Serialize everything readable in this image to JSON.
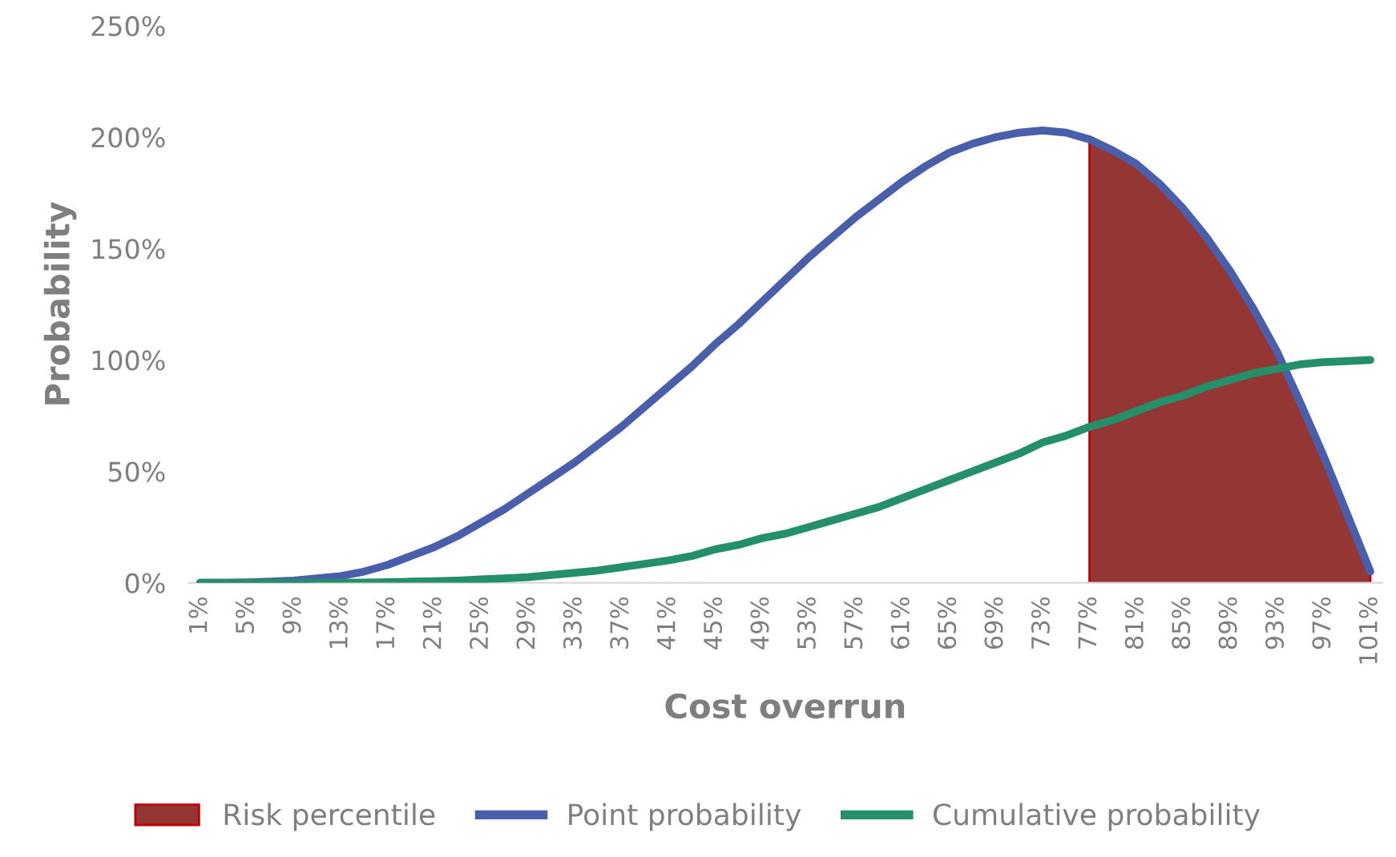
{
  "chart_data": {
    "type": "line",
    "xlabel": "Cost overrun",
    "ylabel": "Probability",
    "categories": [
      "1%",
      null,
      "5%",
      null,
      "9%",
      null,
      "13%",
      null,
      "17%",
      null,
      "21%",
      null,
      "25%",
      null,
      "29%",
      null,
      "33%",
      null,
      "37%",
      null,
      "41%",
      null,
      "45%",
      null,
      "49%",
      null,
      "53%",
      null,
      "57%",
      null,
      "61%",
      null,
      "65%",
      null,
      "69%",
      null,
      "73%",
      null,
      "77%",
      null,
      "81%",
      null,
      "85%",
      null,
      "89%",
      null,
      "93%",
      null,
      "97%",
      null,
      "101%"
    ],
    "series": [
      {
        "name": "Risk percentile",
        "type": "area",
        "color": "#943634",
        "values": [
          null,
          null,
          null,
          null,
          null,
          null,
          null,
          null,
          null,
          null,
          null,
          null,
          null,
          null,
          null,
          null,
          null,
          null,
          null,
          null,
          null,
          null,
          null,
          null,
          null,
          null,
          null,
          null,
          null,
          null,
          null,
          null,
          null,
          null,
          null,
          null,
          null,
          null,
          199,
          194,
          188,
          179,
          168,
          155,
          140,
          123,
          104,
          81,
          57,
          31,
          5
        ]
      },
      {
        "name": "Point probability",
        "color": "#4a5fab",
        "values": [
          0,
          0,
          0.2,
          0.5,
          1,
          2,
          3,
          5,
          8,
          12,
          16,
          21,
          27,
          33,
          40,
          47,
          54,
          62,
          70,
          79,
          88,
          97,
          107,
          116,
          126,
          136,
          146,
          155,
          164,
          172,
          180,
          187,
          193,
          197,
          200,
          202,
          203,
          202,
          199,
          194,
          188,
          179,
          168,
          155,
          140,
          123,
          104,
          81,
          57,
          31,
          5
        ]
      },
      {
        "name": "Cumulative probability",
        "color": "#23906a",
        "values": [
          0,
          0,
          0,
          0,
          0,
          0,
          0,
          0.1,
          0.3,
          0.5,
          0.7,
          1,
          1.5,
          2,
          2.5,
          3.5,
          4.5,
          5.5,
          7,
          8.5,
          10,
          12,
          15,
          17,
          20,
          22,
          25,
          28,
          31,
          34,
          38,
          42,
          46,
          50,
          54,
          58,
          63,
          66,
          70,
          73,
          77,
          81,
          84,
          88,
          91,
          94,
          96,
          98,
          99,
          99.5,
          100
        ]
      }
    ],
    "ylim": [
      0,
      250
    ],
    "yticks": [
      {
        "value": 0,
        "label": "0%"
      },
      {
        "value": 50,
        "label": "50%"
      },
      {
        "value": 100,
        "label": "100%"
      },
      {
        "value": 150,
        "label": "150%"
      },
      {
        "value": 200,
        "label": "200%"
      },
      {
        "value": 250,
        "label": "250%"
      }
    ],
    "grid": false,
    "legend": "bottom"
  }
}
